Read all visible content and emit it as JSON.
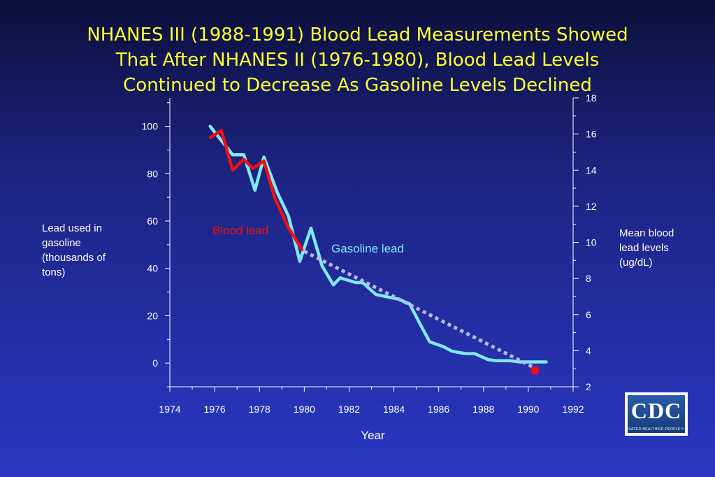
{
  "title_lines": [
    "NHANES III (1988-1991) Blood Lead Measurements Showed",
    "That After NHANES II (1976-1980), Blood Lead Levels",
    "Continued to Decrease As Gasoline Levels Declined"
  ],
  "logo": {
    "text": "CDC",
    "tagline": "SAFER·HEALTHIER·PEOPLE™"
  },
  "colors": {
    "gasoline": "#7fe9f7",
    "blood": "#ee1111",
    "trend": "#b9b6f2",
    "axis": "#ffffff",
    "title": "#ffff33"
  },
  "chart_data": {
    "type": "line",
    "title": "NHANES III (1988-1991) Blood Lead Measurements Showed That After NHANES II (1976-1980), Blood Lead Levels Continued to Decrease As Gasoline Levels Declined",
    "xlabel": "Year",
    "ylabel_left": "Lead used in gasoline (thousands of tons)",
    "ylabel_right": "Mean blood lead levels (ug/dL)",
    "xlim": [
      1974,
      1992
    ],
    "ylim_left": [
      -10,
      112
    ],
    "ylim_right": [
      2,
      18
    ],
    "x_ticks": [
      1974,
      1976,
      1978,
      1980,
      1982,
      1984,
      1986,
      1988,
      1990,
      1992
    ],
    "y_left_ticks": [
      0,
      20,
      40,
      60,
      80,
      100
    ],
    "y_right_ticks": [
      2,
      4,
      6,
      8,
      10,
      12,
      14,
      16,
      18
    ],
    "grid": false,
    "annotations": [
      {
        "text": "Blood lead",
        "series": "blood"
      },
      {
        "text": "Gasoline lead",
        "series": "gasoline"
      }
    ],
    "series": [
      {
        "name": "Gasoline lead",
        "axis": "left",
        "style": "solid",
        "x": [
          1975.8,
          1976.3,
          1976.8,
          1977.3,
          1977.8,
          1978.2,
          1978.8,
          1979.3,
          1979.8,
          1980.3,
          1980.8,
          1981.3,
          1981.6,
          1982.3,
          1982.6,
          1983.2,
          1983.7,
          1984.2,
          1984.7,
          1985.2,
          1985.6,
          1986.2,
          1986.6,
          1987.2,
          1987.6,
          1988.2,
          1988.6,
          1989.2,
          1989.6,
          1990.2,
          1990.8
        ],
        "y": [
          100,
          94,
          88,
          88,
          73,
          87,
          72,
          62,
          43,
          57,
          41,
          33,
          36,
          34,
          34,
          29,
          28,
          27,
          25,
          16,
          9,
          7,
          5,
          4,
          4,
          1.5,
          1,
          1,
          0.5,
          0.5,
          0.5
        ]
      },
      {
        "name": "Blood lead",
        "axis": "right",
        "style": "solid",
        "x": [
          1975.8,
          1976.3,
          1976.8,
          1977.3,
          1977.7,
          1978.2,
          1978.7,
          1979.3,
          1979.9
        ],
        "y": [
          15.8,
          16.2,
          14.0,
          14.6,
          14.1,
          14.5,
          12.4,
          10.8,
          9.6
        ]
      },
      {
        "name": "Blood lead trend",
        "axis": "right",
        "style": "dotted",
        "x": [
          1980.0,
          1990.2
        ],
        "y": [
          9.5,
          3.1
        ]
      },
      {
        "name": "NHANES III blood lead",
        "axis": "right",
        "style": "point",
        "x": [
          1990.3
        ],
        "y": [
          2.9
        ]
      }
    ]
  }
}
